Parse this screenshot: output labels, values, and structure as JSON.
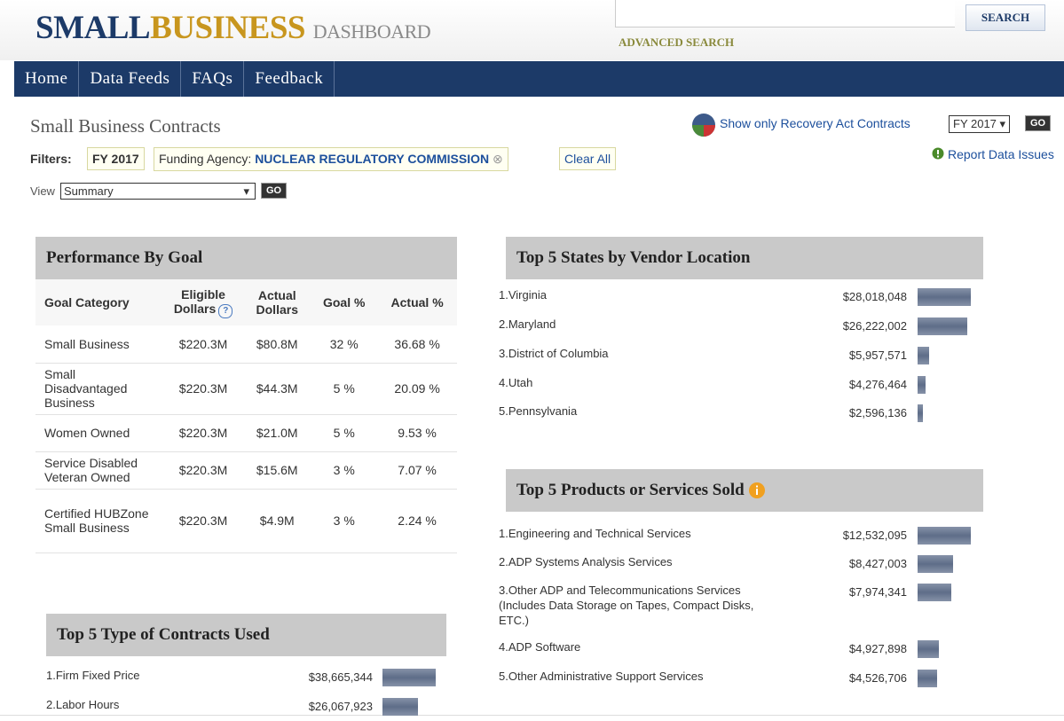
{
  "header": {
    "logo_small": "SMALL",
    "logo_business": "BUSINESS",
    "logo_dashboard": "DASHBOARD",
    "search_button": "SEARCH",
    "advanced_search": "ADVANCED SEARCH"
  },
  "nav": [
    "Home",
    "Data Feeds",
    "FAQs",
    "Feedback"
  ],
  "page_title": "Small Business Contracts",
  "recovery_link": "Show only Recovery Act Contracts",
  "fiscal_year_select": "FY 2017 ▾",
  "fiscal_year_go": "GO",
  "report_link": "Report Data Issues",
  "filters": {
    "label": "Filters:",
    "fiscal_year": "FY 2017",
    "agency_label": "Funding Agency:",
    "agency": "NUCLEAR REGULATORY COMMISSION",
    "clear": "Clear All"
  },
  "view": {
    "label": "View",
    "select": "Summary",
    "go": "GO"
  },
  "performance": {
    "title": "Performance By Goal",
    "columns": [
      "Goal Category",
      "Eligible Dollars",
      "Actual Dollars",
      "Goal %",
      "Actual %"
    ],
    "rows": [
      [
        "Small Business",
        "$220.3M",
        "$80.8M",
        "32 %",
        "36.68 %"
      ],
      [
        "Small Disadvantaged Business",
        "$220.3M",
        "$44.3M",
        "5 %",
        "20.09 %"
      ],
      [
        "Women Owned",
        "$220.3M",
        "$21.0M",
        "5 %",
        "9.53 %"
      ],
      [
        "Service Disabled Veteran Owned",
        "$220.3M",
        "$15.6M",
        "3 %",
        "7.07 %"
      ],
      [
        "Certified HUBZone Small Business",
        "$220.3M",
        "$4.9M",
        "3 %",
        "2.24 %"
      ]
    ]
  },
  "contracts": {
    "title": "Top 5 Type of Contracts Used",
    "items": [
      {
        "label": "1.Firm Fixed Price",
        "amount": 38665344,
        "amount_label": "$38,665,344"
      },
      {
        "label": "2.Labor Hours",
        "amount": 26067923,
        "amount_label": "$26,067,923"
      }
    ]
  },
  "states": {
    "title": "Top 5 States by Vendor Location",
    "items": [
      {
        "label": "1.Virginia",
        "amount": 28018048,
        "amount_label": "$28,018,048"
      },
      {
        "label": "2.Maryland",
        "amount": 26222002,
        "amount_label": "$26,222,002"
      },
      {
        "label": "3.District of Columbia",
        "amount": 5957571,
        "amount_label": "$5,957,571"
      },
      {
        "label": "4.Utah",
        "amount": 4276464,
        "amount_label": "$4,276,464"
      },
      {
        "label": "5.Pennsylvania",
        "amount": 2596136,
        "amount_label": "$2,596,136"
      }
    ]
  },
  "products": {
    "title": "Top 5 Products or Services Sold",
    "items": [
      {
        "label": "1.Engineering and Technical Services",
        "amount": 12532095,
        "amount_label": "$12,532,095"
      },
      {
        "label": "2.ADP Systems Analysis Services",
        "amount": 8427003,
        "amount_label": "$8,427,003"
      },
      {
        "label": "3.Other ADP and Telecommunications Services (Includes Data Storage on Tapes, Compact Disks, ETC.)",
        "amount": 7974341,
        "amount_label": "$7,974,341"
      },
      {
        "label": "4.ADP Software",
        "amount": 4927898,
        "amount_label": "$4,927,898"
      },
      {
        "label": "5.Other Administrative Support Services",
        "amount": 4526706,
        "amount_label": "$4,526,706"
      }
    ]
  }
}
